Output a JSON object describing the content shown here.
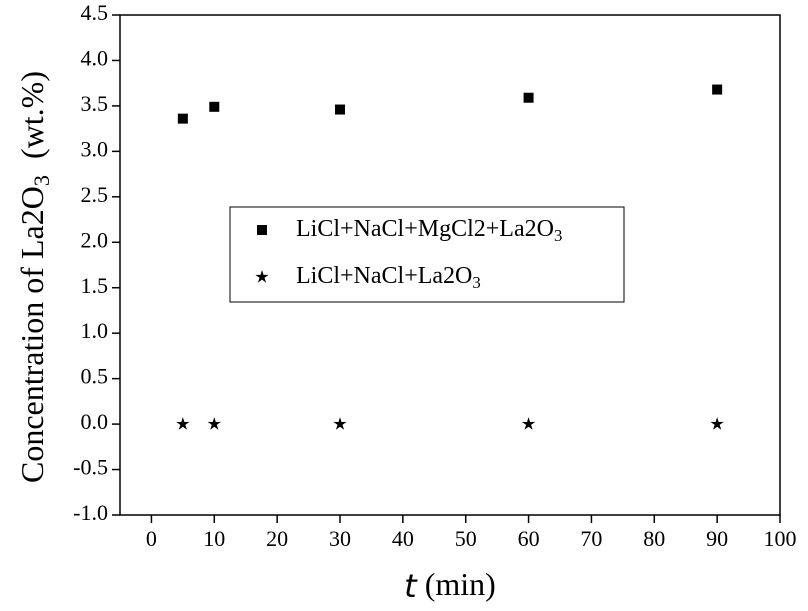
{
  "chart_data": {
    "type": "scatter",
    "xlabel": "t (min)",
    "ylabel": "Concentration of La2O3  (wt.%)",
    "x": [
      5,
      10,
      30,
      60,
      90
    ],
    "series": [
      {
        "name": "LiCl+NaCl+MgCl2+La2O3",
        "color": "#000000",
        "marker": "square",
        "values": [
          3.36,
          3.49,
          3.46,
          3.59,
          3.68
        ]
      },
      {
        "name": "LiCl+NaCl+La2O3",
        "color": "#000000",
        "marker": "star",
        "values": [
          0,
          0,
          0,
          0,
          0
        ]
      }
    ],
    "xlim": [
      -5,
      100
    ],
    "xticks": [
      0,
      10,
      20,
      30,
      40,
      50,
      60,
      70,
      80,
      90,
      100
    ],
    "ylim": [
      -1,
      4.5
    ],
    "yticks": [
      {
        "value": -1,
        "label": "-1.0"
      },
      -0.5,
      {
        "value": 0,
        "label": "0.0"
      },
      0.5,
      {
        "value": 1,
        "label": "1.0"
      },
      1.5,
      {
        "value": 2,
        "label": "2.0"
      },
      2.5,
      {
        "value": 3,
        "label": "3.0"
      },
      3.5,
      {
        "value": 4,
        "label": "4.0"
      },
      4.5
    ],
    "grid": false
  }
}
